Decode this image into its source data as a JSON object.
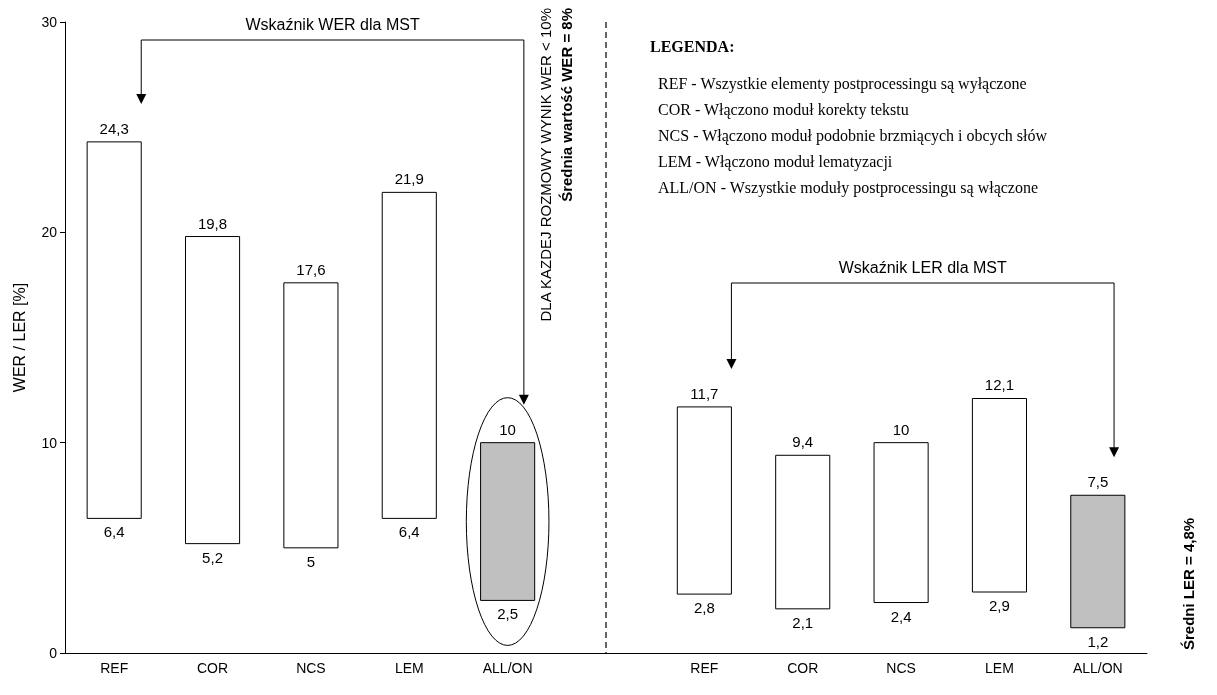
{
  "chart_data": {
    "type": "bar",
    "ylabel": "WER / LER [%]",
    "categories": [
      "REF",
      "COR",
      "NCS",
      "LEM",
      "ALL/ON",
      null,
      "REF",
      "COR",
      "NCS",
      "LEM",
      "ALL/ON"
    ],
    "base": [
      6.4,
      5.2,
      5,
      6.4,
      2.5,
      null,
      2.8,
      2.1,
      2.4,
      2.9,
      1.2
    ],
    "values": [
      17.9,
      14.6,
      12.6,
      15.5,
      7.5,
      null,
      8.9,
      7.3,
      7.6,
      9.2,
      6.3
    ],
    "colors": [
      "#ffffff",
      "#ffffff",
      "#ffffff",
      "#ffffff",
      "#c0c0c0",
      null,
      "#ffffff",
      "#ffffff",
      "#ffffff",
      "#ffffff",
      "#c0c0c0"
    ],
    "value_labels": [
      "24,3",
      "19,8",
      "17,6",
      "21,9",
      "10",
      null,
      "11,7",
      "9,4",
      "10",
      "12,1",
      "7,5"
    ],
    "ylim": [
      0,
      30
    ],
    "yticks": [
      0,
      10,
      20,
      30
    ],
    "annotations": [
      "Wskaźnik WER dla MST",
      "DLA KAZDEJ ROZMOWY WYNIK WER < 10%",
      "Średnia wartość WER = 8%",
      "Wskaźnik LER dla MST",
      "Średni LER = 4,8%",
      "LEGENDA:",
      "REF - Wszystkie elementy postprocessingu są wyłączone",
      "COR - Włączono moduł korekty tekstu",
      "NCS - Włączono moduł podobnie brzmiących i obcych słów",
      "LEM - Włączono moduł lematyzacji",
      "ALL/ON - Wszystkie moduły postprocessingu są włączone",
      {
        "text": "6,4",
        "x": "REF",
        "y": 6.4
      },
      {
        "text": "5,2",
        "x": "COR",
        "y": 5.2
      },
      {
        "text": "5",
        "x": "NCS",
        "y": 5
      },
      {
        "text": "6,4",
        "x": "LEM",
        "y": 6.4
      },
      {
        "text": "2,5",
        "x": "ALL/ON",
        "y": 2.5
      },
      "2,8",
      "2,1",
      "2,4",
      "2,9",
      "1,2"
    ]
  }
}
